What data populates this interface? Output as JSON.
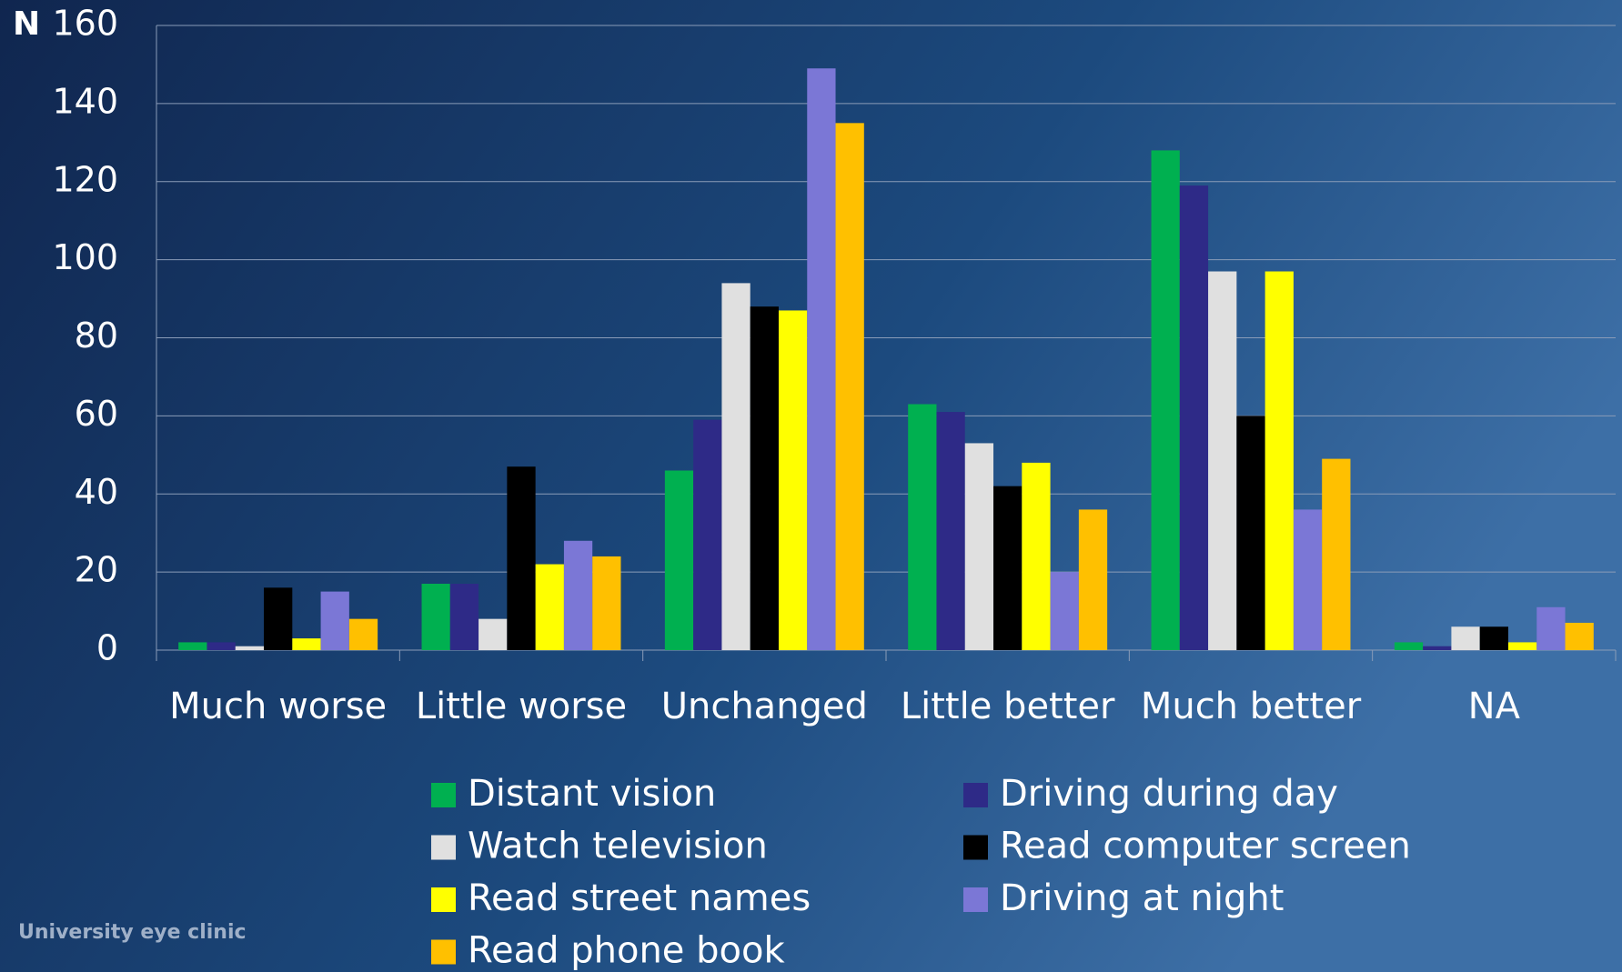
{
  "chart_data": {
    "type": "bar",
    "y_label": "N",
    "note": "University eye clinic",
    "categories": [
      "Much worse",
      "Little worse",
      "Unchanged",
      "Little better",
      "Much better",
      "NA"
    ],
    "series": [
      {
        "name": "Distant vision",
        "color": "#00b050",
        "values": [
          2,
          17,
          46,
          63,
          128,
          2
        ]
      },
      {
        "name": "Driving during day",
        "color": "#2e2a87",
        "values": [
          2,
          17,
          59,
          61,
          119,
          1
        ]
      },
      {
        "name": "Watch television",
        "color": "#e0e0e0",
        "values": [
          1,
          8,
          94,
          53,
          97,
          6
        ]
      },
      {
        "name": "Read computer screen",
        "color": "#000000",
        "values": [
          16,
          47,
          88,
          42,
          60,
          6
        ]
      },
      {
        "name": "Read street names",
        "color": "#ffff00",
        "values": [
          3,
          22,
          87,
          48,
          97,
          2
        ]
      },
      {
        "name": "Driving at night",
        "color": "#7b77d6",
        "values": [
          15,
          28,
          149,
          20,
          36,
          11
        ]
      },
      {
        "name": "Read phone book",
        "color": "#ffc000",
        "values": [
          8,
          24,
          135,
          36,
          49,
          7
        ]
      }
    ],
    "ylim": [
      0,
      160
    ],
    "yticks": [
      0,
      20,
      40,
      60,
      80,
      100,
      120,
      140,
      160
    ],
    "grid": true
  }
}
